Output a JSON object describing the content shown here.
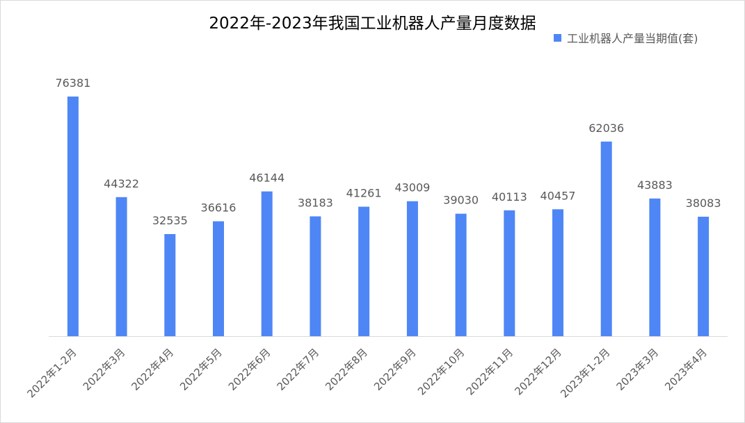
{
  "chart_data": {
    "type": "bar",
    "title": "2022年-2023年我国工业机器人产量月度数据",
    "categories": [
      "2022年1-2月",
      "2022年3月",
      "2022年4月",
      "2022年5月",
      "2022年6月",
      "2022年7月",
      "2022年8月",
      "2022年9月",
      "2022年10月",
      "2022年11月",
      "2022年12月",
      "2023年1-2月",
      "2023年3月",
      "2023年4月"
    ],
    "series": [
      {
        "name": "工业机器人产量当期值(套)",
        "values": [
          76381,
          44322,
          32535,
          36616,
          46144,
          38183,
          41261,
          43009,
          39030,
          40113,
          40457,
          62036,
          43883,
          38083
        ],
        "color": "#4e86f5"
      }
    ],
    "xlabel": "",
    "ylabel": "",
    "ylim": [
      0,
      76381
    ],
    "grid": false,
    "data_labels": true,
    "legend_position": "top-right",
    "axis_color": "#d9d9d9"
  }
}
